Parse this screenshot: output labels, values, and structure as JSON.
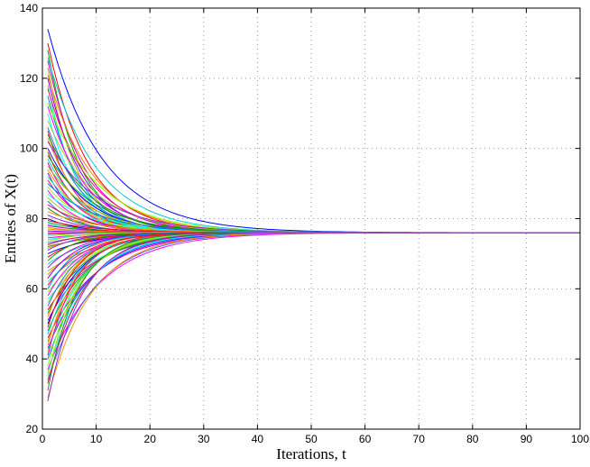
{
  "chart_data": {
    "type": "line",
    "title": "",
    "xlabel": "Iterations, t",
    "ylabel": "Entries of X(t)",
    "xlim": [
      0,
      100
    ],
    "ylim": [
      20,
      140
    ],
    "xticks": [
      0,
      10,
      20,
      30,
      40,
      50,
      60,
      70,
      80,
      90,
      100
    ],
    "yticks": [
      20,
      40,
      60,
      80,
      100,
      120,
      140
    ],
    "grid": true,
    "legend": "none",
    "converged_value": 76,
    "decay_rate_range": [
      0.1,
      0.19
    ],
    "series_count": 100,
    "start_t": 1,
    "end_t": 100,
    "initial_values": [
      134,
      130,
      128,
      126,
      125,
      123,
      121,
      120,
      118,
      117,
      115,
      113,
      112,
      110,
      108,
      106,
      105,
      104,
      103,
      102,
      100,
      99,
      98,
      97,
      96,
      95,
      94,
      93,
      92,
      91,
      90,
      89,
      88,
      87,
      86,
      85,
      84,
      83,
      82,
      81,
      80,
      79.5,
      79,
      78.5,
      78,
      77.5,
      77,
      76.5,
      76.2,
      75.8,
      75.5,
      75,
      74.5,
      74,
      73.5,
      73,
      72.5,
      72,
      71.5,
      71,
      70,
      69,
      68,
      67,
      66,
      65,
      64,
      63,
      62,
      61,
      60,
      59,
      58,
      57,
      56,
      55,
      54,
      53,
      52,
      51,
      50,
      49,
      48,
      47,
      46,
      45,
      44,
      43,
      42,
      41,
      40,
      38,
      37,
      36,
      35,
      34,
      33,
      31,
      29,
      28
    ],
    "colors": [
      "#0000ff",
      "#ff0000",
      "#00aa00",
      "#00cccc",
      "#cc00cc",
      "#aaaa00",
      "#ff7f00",
      "#7f00ff",
      "#00ff7f",
      "#ff0080",
      "#0080ff",
      "#80ff00",
      "#ff00ff",
      "#00ffff",
      "#9acd32",
      "#4169e1",
      "#dc143c",
      "#228b22",
      "#ff8c00",
      "#8a2be2"
    ]
  }
}
